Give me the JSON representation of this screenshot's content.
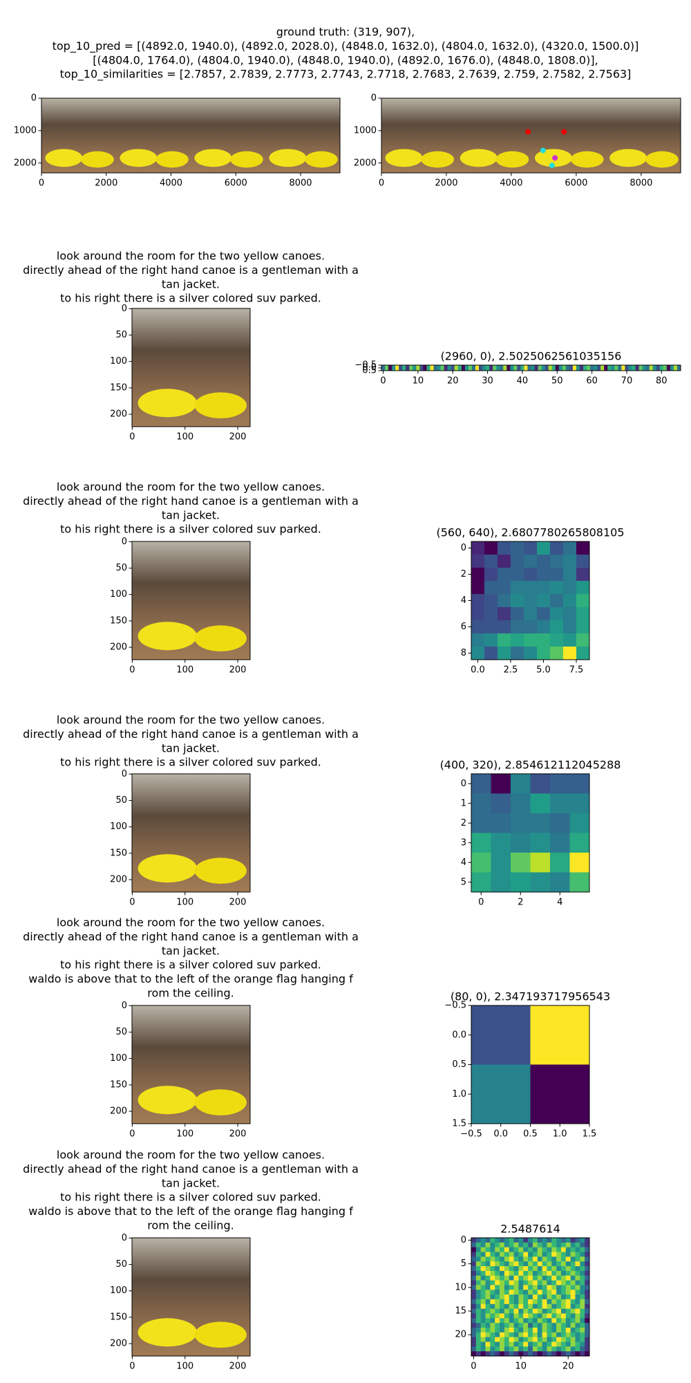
{
  "figure_title": [
    "ground truth: (319, 907),",
    "top_10_pred = [(4892.0, 1940.0), (4892.0, 2028.0), (4848.0, 1632.0), (4804.0, 1632.0), (4320.0, 1500.0)]",
    "[(4804.0, 1764.0), (4804.0, 1940.0), (4848.0, 1940.0), (4892.0, 1676.0), (4848.0, 1808.0)],",
    "top_10_similarities = [2.7857, 2.7839, 2.7773, 2.7743, 2.7718, 2.7683, 2.7639, 2.759, 2.7582, 2.7563]"
  ],
  "chart_data": [
    {
      "type": "image",
      "xlim": [
        0,
        9216
      ],
      "ylim": [
        2304,
        0
      ],
      "xticks": [
        0,
        2000,
        4000,
        6000,
        8000
      ],
      "yticks": [
        0,
        1000,
        2000
      ]
    },
    {
      "type": "image",
      "xlim": [
        0,
        9216
      ],
      "ylim": [
        2304,
        0
      ],
      "xticks": [
        0,
        2000,
        4000,
        6000,
        8000
      ],
      "yticks": [
        0,
        1000,
        2000
      ]
    },
    {
      "type": "image",
      "caption": [
        "look around the room for the two yellow canoes.",
        "directly ahead of the right hand canoe is a gentleman with a",
        "tan jacket.",
        "to his right there is a silver colored suv parked."
      ],
      "xlim": [
        -0.5,
        223.5
      ],
      "ylim": [
        223.5,
        -0.5
      ],
      "xticks": [
        0,
        100,
        200
      ],
      "yticks": [
        0,
        50,
        100,
        150,
        200
      ]
    },
    {
      "type": "heatmap",
      "title": "(2960, 0), 2.5025062561035156",
      "colormap": "viridis",
      "xlim": [
        -0.5,
        85.5
      ],
      "ylim": [
        0.5,
        -0.5
      ],
      "xticks": [
        0,
        10,
        20,
        30,
        40,
        50,
        60,
        70,
        80
      ],
      "yticks": [
        {
          "value": -0.5,
          "label": "−0.5"
        },
        {
          "value": 0.0,
          "label": "0.0"
        },
        0.5
      ],
      "values": [
        [
          0.45,
          0.6,
          0.3,
          0.5,
          0.7,
          0.4,
          0.55,
          0.35,
          0.6,
          0.5,
          0.65,
          0.4,
          0.3,
          0.55,
          0.7,
          0.45,
          0.5,
          0.6,
          0.35,
          0.5,
          0.4,
          0.65,
          0.55,
          0.3,
          0.5,
          0.6,
          0.45,
          0.7,
          0.4,
          0.5,
          0.55,
          0.35,
          0.6,
          0.5,
          0.45,
          0.65,
          0.3,
          0.5,
          0.6,
          0.4,
          0.55,
          0.7,
          0.45,
          0.5,
          0.35,
          0.6,
          0.5,
          0.4,
          0.65,
          0.55,
          0.3,
          0.5,
          0.6,
          0.45,
          0.4,
          0.7,
          0.5,
          0.35,
          0.55,
          0.6,
          0.45,
          0.5,
          0.4,
          0.65,
          0.3,
          0.55,
          0.5,
          0.6,
          0.45,
          0.7,
          0.4,
          0.5,
          0.55,
          0.35,
          0.6,
          0.5,
          0.45,
          0.65,
          0.5,
          0.4,
          0.55,
          0.6,
          0.3,
          0.5,
          0.65,
          0.45
        ]
      ]
    },
    {
      "type": "image",
      "caption": [
        "look around the room for the two yellow canoes.",
        "directly ahead of the right hand canoe is a gentleman with a",
        "tan jacket.",
        "to his right there is a silver colored suv parked."
      ],
      "xlim": [
        -0.5,
        223.5
      ],
      "ylim": [
        223.5,
        -0.5
      ],
      "xticks": [
        0,
        100,
        200
      ],
      "yticks": [
        0,
        50,
        100,
        150,
        200
      ]
    },
    {
      "type": "heatmap",
      "title": "(560, 640), 2.6807780265808105",
      "colormap": "viridis",
      "xlim": [
        -0.5,
        8.5
      ],
      "ylim": [
        8.5,
        -0.5
      ],
      "xticks": [
        {
          "value": 0.0,
          "label": "0.0"
        },
        2.5,
        {
          "value": 5.0,
          "label": "5.0"
        },
        7.5
      ],
      "yticks": [
        0,
        2,
        4,
        6,
        8
      ],
      "values": [
        [
          0.15,
          0.05,
          0.3,
          0.35,
          0.3,
          0.55,
          0.3,
          0.4,
          0.05
        ],
        [
          0.2,
          0.3,
          0.15,
          0.35,
          0.4,
          0.35,
          0.4,
          0.45,
          0.3
        ],
        [
          0.05,
          0.25,
          0.35,
          0.35,
          0.3,
          0.35,
          0.35,
          0.45,
          0.2
        ],
        [
          0.05,
          0.35,
          0.35,
          0.45,
          0.45,
          0.45,
          0.5,
          0.45,
          0.55
        ],
        [
          0.25,
          0.3,
          0.4,
          0.5,
          0.45,
          0.5,
          0.4,
          0.5,
          0.65
        ],
        [
          0.25,
          0.3,
          0.2,
          0.35,
          0.45,
          0.35,
          0.5,
          0.45,
          0.6
        ],
        [
          0.3,
          0.3,
          0.3,
          0.4,
          0.4,
          0.45,
          0.55,
          0.45,
          0.6
        ],
        [
          0.45,
          0.5,
          0.65,
          0.6,
          0.65,
          0.65,
          0.6,
          0.55,
          0.7
        ],
        [
          0.5,
          0.3,
          0.55,
          0.4,
          0.5,
          0.65,
          0.75,
          1.0,
          0.6
        ]
      ]
    },
    {
      "type": "image",
      "caption": [
        "look around the room for the two yellow canoes.",
        "directly ahead of the right hand canoe is a gentleman with a",
        "tan jacket.",
        "to his right there is a silver colored suv parked."
      ],
      "xlim": [
        -0.5,
        223.5
      ],
      "ylim": [
        223.5,
        -0.5
      ],
      "xticks": [
        0,
        100,
        200
      ],
      "yticks": [
        0,
        50,
        100,
        150,
        200
      ]
    },
    {
      "type": "heatmap",
      "title": "(400, 320), 2.854612112045288",
      "colormap": "viridis",
      "xlim": [
        -0.5,
        5.5
      ],
      "ylim": [
        5.5,
        -0.5
      ],
      "xticks": [
        0,
        2,
        4
      ],
      "yticks": [
        0,
        1,
        2,
        3,
        4,
        5
      ],
      "values": [
        [
          0.3,
          0.0,
          0.45,
          0.25,
          0.3,
          0.3
        ],
        [
          0.35,
          0.3,
          0.4,
          0.55,
          0.45,
          0.45
        ],
        [
          0.35,
          0.35,
          0.4,
          0.4,
          0.35,
          0.5
        ],
        [
          0.6,
          0.5,
          0.45,
          0.5,
          0.4,
          0.6
        ],
        [
          0.7,
          0.5,
          0.75,
          0.9,
          0.6,
          1.0
        ],
        [
          0.6,
          0.5,
          0.55,
          0.5,
          0.45,
          0.7
        ]
      ]
    },
    {
      "type": "image",
      "caption": [
        "look around the room for the two yellow canoes.",
        "directly ahead of the right hand canoe is a gentleman with a",
        "tan jacket.",
        "to his right there is a silver colored suv parked.",
        "waldo is above that to the left of the orange flag hanging f",
        "rom the ceiling."
      ],
      "xlim": [
        -0.5,
        223.5
      ],
      "ylim": [
        223.5,
        -0.5
      ],
      "xticks": [
        0,
        100,
        200
      ],
      "yticks": [
        0,
        50,
        100,
        150,
        200
      ]
    },
    {
      "type": "heatmap",
      "title": "(80, 0), 2.347193717956543",
      "colormap": "viridis",
      "xlim": [
        -0.5,
        1.5
      ],
      "ylim": [
        1.5,
        -0.5
      ],
      "xticks": [
        {
          "value": -0.5,
          "label": "−0.5"
        },
        {
          "value": 0.0,
          "label": "0.0"
        },
        0.5,
        {
          "value": 1.0,
          "label": "1.0"
        },
        1.5
      ],
      "yticks": [
        {
          "value": -0.5,
          "label": "−0.5"
        },
        {
          "value": 0.0,
          "label": "0.0"
        },
        0.5,
        {
          "value": 1.0,
          "label": "1.0"
        },
        1.5
      ],
      "values": [
        [
          0.25,
          1.0
        ],
        [
          0.45,
          0.0
        ]
      ]
    },
    {
      "type": "image",
      "caption": [
        "look around the room for the two yellow canoes.",
        "directly ahead of the right hand canoe is a gentleman with a",
        "tan jacket.",
        "to his right there is a silver colored suv parked.",
        "waldo is above that to the left of the orange flag hanging f",
        "rom the ceiling."
      ],
      "xlim": [
        -0.5,
        223.5
      ],
      "ylim": [
        223.5,
        -0.5
      ],
      "xticks": [
        0,
        100,
        200
      ],
      "yticks": [
        0,
        50,
        100,
        150,
        200
      ]
    },
    {
      "type": "heatmap",
      "title": "2.5487614",
      "colormap": "viridis",
      "xlim": [
        -0.5,
        24.5
      ],
      "ylim": [
        24.5,
        -0.5
      ],
      "xticks": [
        0,
        10,
        20
      ],
      "yticks": [
        0,
        5,
        10,
        15,
        20
      ],
      "values": [
        [
          0.3,
          0.4,
          0.5,
          0.4,
          0.6,
          0.5,
          0.4,
          0.5,
          0.6,
          0.4,
          0.5,
          0.3,
          0.5,
          0.6,
          0.4,
          0.5,
          0.4,
          0.6,
          0.5,
          0.4,
          0.5,
          0.3,
          0.4,
          0.5,
          0.3
        ],
        [
          0.4,
          0.6,
          0.5,
          0.7,
          0.5,
          0.6,
          0.7,
          0.5,
          0.6,
          0.7,
          0.5,
          0.6,
          0.4,
          0.7,
          0.6,
          0.5,
          0.7,
          0.6,
          0.5,
          0.6,
          0.7,
          0.5,
          0.6,
          0.4,
          0.3
        ],
        [
          0.2,
          0.5,
          0.7,
          0.6,
          0.5,
          0.7,
          0.6,
          0.8,
          0.5,
          0.6,
          0.7,
          0.5,
          0.6,
          0.5,
          0.7,
          0.6,
          0.5,
          0.7,
          0.6,
          0.8,
          0.5,
          0.6,
          0.5,
          0.6,
          0.4
        ],
        [
          0.3,
          0.6,
          0.5,
          0.8,
          0.6,
          0.5,
          0.7,
          0.6,
          0.7,
          0.5,
          0.6,
          0.8,
          0.5,
          0.6,
          0.7,
          0.5,
          0.6,
          0.8,
          0.7,
          0.6,
          0.5,
          0.7,
          0.6,
          0.5,
          0.3
        ],
        [
          0.4,
          0.5,
          0.7,
          0.6,
          0.7,
          0.6,
          0.5,
          0.7,
          0.8,
          0.6,
          0.5,
          0.7,
          0.6,
          0.8,
          0.5,
          0.7,
          0.6,
          0.5,
          0.7,
          0.6,
          0.8,
          0.5,
          0.6,
          0.7,
          0.4
        ],
        [
          0.3,
          0.7,
          0.6,
          0.5,
          0.8,
          0.7,
          0.6,
          0.5,
          0.7,
          0.8,
          0.6,
          0.5,
          0.7,
          0.6,
          0.8,
          0.6,
          0.7,
          0.5,
          0.6,
          0.7,
          0.5,
          0.6,
          0.8,
          0.5,
          0.3
        ],
        [
          0.4,
          0.6,
          0.8,
          0.7,
          0.6,
          0.5,
          0.8,
          0.7,
          0.6,
          0.5,
          0.7,
          0.8,
          0.6,
          0.7,
          0.5,
          0.8,
          0.6,
          0.7,
          0.5,
          0.6,
          0.7,
          0.6,
          0.5,
          0.6,
          0.4
        ],
        [
          0.3,
          0.5,
          0.6,
          0.8,
          0.7,
          0.6,
          0.5,
          0.8,
          0.7,
          0.6,
          0.8,
          0.6,
          0.7,
          0.5,
          0.6,
          0.7,
          0.8,
          0.6,
          0.7,
          0.5,
          0.6,
          0.7,
          0.6,
          0.5,
          0.3
        ],
        [
          0.4,
          0.7,
          0.5,
          0.6,
          0.8,
          0.7,
          0.6,
          0.7,
          0.5,
          0.8,
          0.6,
          0.7,
          0.8,
          0.6,
          0.7,
          0.5,
          0.6,
          0.8,
          0.6,
          0.7,
          0.8,
          0.5,
          0.7,
          0.6,
          0.4
        ],
        [
          0.3,
          0.6,
          0.7,
          0.5,
          0.6,
          0.8,
          0.7,
          0.6,
          0.8,
          0.7,
          0.5,
          0.6,
          0.7,
          0.8,
          0.6,
          0.7,
          0.5,
          0.6,
          0.8,
          0.7,
          0.6,
          0.7,
          0.5,
          0.6,
          0.3
        ],
        [
          0.4,
          0.7,
          0.6,
          0.5,
          0.8,
          0.6,
          0.7,
          0.5,
          0.6,
          0.7,
          0.5,
          0.8,
          0.6,
          0.7,
          0.5,
          0.6,
          0.8,
          0.7,
          0.5,
          0.6,
          0.7,
          0.6,
          0.7,
          0.5,
          0.4
        ],
        [
          0.3,
          0.5,
          0.6,
          0.7,
          0.6,
          0.5,
          0.7,
          0.6,
          0.8,
          0.7,
          0.6,
          0.5,
          0.7,
          0.6,
          0.8,
          0.6,
          0.7,
          0.8,
          0.5,
          0.6,
          0.7,
          0.8,
          0.6,
          0.5,
          0.3
        ],
        [
          0.3,
          0.5,
          0.6,
          0.7,
          0.5,
          0.6,
          0.7,
          0.8,
          0.6,
          0.5,
          0.7,
          0.6,
          0.5,
          0.8,
          0.6,
          0.5,
          0.7,
          0.6,
          0.7,
          0.5,
          0.6,
          0.8,
          0.5,
          0.6,
          0.3
        ],
        [
          0.4,
          0.6,
          0.7,
          0.5,
          0.8,
          0.7,
          0.6,
          0.8,
          0.6,
          0.5,
          0.7,
          0.6,
          0.8,
          0.7,
          0.6,
          0.8,
          0.5,
          0.7,
          0.6,
          0.7,
          0.8,
          0.6,
          0.5,
          0.7,
          0.4
        ],
        [
          0.3,
          0.5,
          0.8,
          0.6,
          0.5,
          0.7,
          0.6,
          0.5,
          0.7,
          0.6,
          0.8,
          0.6,
          0.7,
          0.5,
          0.6,
          0.8,
          0.7,
          0.5,
          0.6,
          0.7,
          0.8,
          0.5,
          0.6,
          0.7,
          0.3
        ],
        [
          0.4,
          0.6,
          0.5,
          0.6,
          0.7,
          0.6,
          0.5,
          0.7,
          0.6,
          0.8,
          0.5,
          0.7,
          0.6,
          0.8,
          0.7,
          0.5,
          0.6,
          0.7,
          0.8,
          0.5,
          0.6,
          0.7,
          0.8,
          0.6,
          0.4
        ],
        [
          0.3,
          0.6,
          0.5,
          0.7,
          0.6,
          0.7,
          0.8,
          0.6,
          0.5,
          0.7,
          0.6,
          0.8,
          0.7,
          0.6,
          0.5,
          0.7,
          0.8,
          0.6,
          0.7,
          0.8,
          0.6,
          0.5,
          0.7,
          0.6,
          0.3
        ],
        [
          0.4,
          0.6,
          0.5,
          0.6,
          0.5,
          0.8,
          0.6,
          0.7,
          0.5,
          0.6,
          0.7,
          0.5,
          0.6,
          0.5,
          0.7,
          0.6,
          0.5,
          0.8,
          0.6,
          0.7,
          0.5,
          0.6,
          0.7,
          0.5,
          0.2
        ],
        [
          0.3,
          0.4,
          0.6,
          0.5,
          0.7,
          0.6,
          0.5,
          0.6,
          0.7,
          0.5,
          0.6,
          0.7,
          0.4,
          0.6,
          0.5,
          0.7,
          0.6,
          0.5,
          0.7,
          0.6,
          0.5,
          0.7,
          0.5,
          0.6,
          0.4
        ],
        [
          0.4,
          0.5,
          0.7,
          0.6,
          0.7,
          0.6,
          0.5,
          0.7,
          0.8,
          0.6,
          0.5,
          0.7,
          0.6,
          0.8,
          0.5,
          0.7,
          0.6,
          0.5,
          0.7,
          0.6,
          0.8,
          0.5,
          0.6,
          0.7,
          0.4
        ],
        [
          0.4,
          0.6,
          0.8,
          0.7,
          0.6,
          0.5,
          0.8,
          0.7,
          0.6,
          0.5,
          0.7,
          0.8,
          0.6,
          0.7,
          0.5,
          0.8,
          0.6,
          0.7,
          0.5,
          0.6,
          0.7,
          0.6,
          0.5,
          0.6,
          0.4
        ],
        [
          0.3,
          0.6,
          0.7,
          0.5,
          0.6,
          0.8,
          0.7,
          0.6,
          0.8,
          0.7,
          0.5,
          0.6,
          0.7,
          0.8,
          0.6,
          0.7,
          0.5,
          0.6,
          0.8,
          0.7,
          0.6,
          0.7,
          0.5,
          0.6,
          0.3
        ],
        [
          0.3,
          0.6,
          0.5,
          0.8,
          0.6,
          0.5,
          0.7,
          0.6,
          0.7,
          0.5,
          0.6,
          0.8,
          0.5,
          0.6,
          0.7,
          0.5,
          0.6,
          0.8,
          0.7,
          0.6,
          0.5,
          0.7,
          0.6,
          0.5,
          0.3
        ],
        [
          0.4,
          0.6,
          0.5,
          0.7,
          0.5,
          0.6,
          0.7,
          0.5,
          0.6,
          0.7,
          0.5,
          0.6,
          0.4,
          0.7,
          0.6,
          0.5,
          0.7,
          0.6,
          0.5,
          0.6,
          0.7,
          0.5,
          0.6,
          0.4,
          0.3
        ],
        [
          0.2,
          0.3,
          0.2,
          0.3,
          0.4,
          0.3,
          0.2,
          0.3,
          0.4,
          0.3,
          0.2,
          0.3,
          0.4,
          0.3,
          0.2,
          0.3,
          0.4,
          0.3,
          0.2,
          0.3,
          0.4,
          0.3,
          0.2,
          0.3,
          0.2
        ]
      ]
    }
  ]
}
